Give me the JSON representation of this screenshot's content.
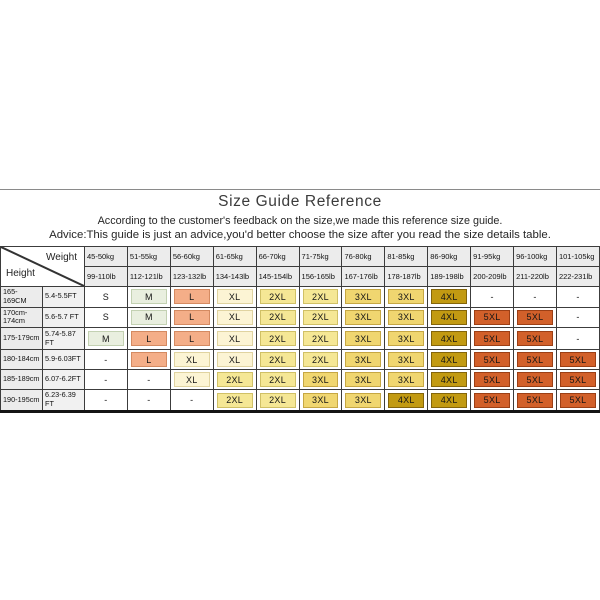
{
  "page": {
    "title": "Size Guide Reference",
    "subtitle_line1": "According to the customer's feedback on the size,we made this reference size guide.",
    "subtitle_line2": "Advice:This guide is just an advice,you'd better choose the size after you read the size details table."
  },
  "table": {
    "corner": {
      "weight_label": "Weight",
      "height_label": "Height"
    },
    "weight_headers_kg": [
      "45-50kg",
      "51-55kg",
      "56-60kg",
      "61-65kg",
      "66-70kg",
      "71-75kg",
      "76-80kg",
      "81-85kg",
      "86-90kg",
      "91-95kg",
      "96-100kg",
      "101-105kg"
    ],
    "weight_headers_lb": [
      "99-110lb",
      "112-121lb",
      "123-132lb",
      "134-143lb",
      "145-154lb",
      "156-165lb",
      "167-176lb",
      "178-187lb",
      "189-198lb",
      "200-209lb",
      "211-220lb",
      "222-231lb"
    ],
    "rows": [
      {
        "height_cm": "165-169CM",
        "height_ft": "5.4-5.5FT",
        "sizes": [
          "S",
          "M",
          "L",
          "XL",
          "2XL",
          "2XL",
          "3XL",
          "3XL",
          "4XL",
          "-",
          "-",
          "-"
        ]
      },
      {
        "height_cm": "170cm-174cm",
        "height_ft": "5.6-5.7 FT",
        "sizes": [
          "S",
          "M",
          "L",
          "XL",
          "2XL",
          "2XL",
          "3XL",
          "3XL",
          "4XL",
          "5XL",
          "5XL",
          "-"
        ]
      },
      {
        "height_cm": "175-179cm",
        "height_ft": "5.74-5.87 FT",
        "sizes": [
          "M",
          "L",
          "L",
          "XL",
          "2XL",
          "2XL",
          "3XL",
          "3XL",
          "4XL",
          "5XL",
          "5XL",
          "-"
        ]
      },
      {
        "height_cm": "180-184cm",
        "height_ft": "5.9-6.03FT",
        "sizes": [
          "-",
          "L",
          "XL",
          "XL",
          "2XL",
          "2XL",
          "3XL",
          "3XL",
          "4XL",
          "5XL",
          "5XL",
          "5XL"
        ]
      },
      {
        "height_cm": "185-189cm",
        "height_ft": "6.07-6.2FT",
        "sizes": [
          "-",
          "-",
          "XL",
          "2XL",
          "2XL",
          "3XL",
          "3XL",
          "3XL",
          "4XL",
          "5XL",
          "5XL",
          "5XL"
        ]
      },
      {
        "height_cm": "190-195cm",
        "height_ft": "6.23-6.39 FT",
        "sizes": [
          "-",
          "-",
          "-",
          "2XL",
          "2XL",
          "3XL",
          "3XL",
          "4XL",
          "4XL",
          "5XL",
          "5XL",
          "5XL"
        ]
      }
    ],
    "size_colors": {
      "S": {
        "bg": "#ffffff",
        "border": "transparent"
      },
      "M": {
        "bg": "#e9efdf",
        "border": "#c3d1b2"
      },
      "L": {
        "bg": "#f4ae88",
        "border": "#d48a61"
      },
      "XL": {
        "bg": "#fcf4d4",
        "border": "#e0d3a0"
      },
      "2XL": {
        "bg": "#f5e795",
        "border": "#d0c066"
      },
      "3XL": {
        "bg": "#f0d670",
        "border": "#c6a743"
      },
      "4XL": {
        "bg": "#c29a12",
        "border": "#84650a"
      },
      "5XL": {
        "bg": "#d2602a",
        "border": "#9c3f15"
      },
      "-": {
        "bg": "#ffffff",
        "border": "transparent"
      }
    },
    "divider_color": "#8a8a8a",
    "header_bg": "#ececec"
  },
  "chart_data": {
    "type": "table",
    "title": "Size Guide Reference",
    "notes": [
      "According to the customer's feedback on the size,we made this reference size guide.",
      "Advice:This guide is just an advice,you'd better choose the size after you read the size details table."
    ],
    "column_headers_weight_kg": [
      "45-50kg",
      "51-55kg",
      "56-60kg",
      "61-65kg",
      "66-70kg",
      "71-75kg",
      "76-80kg",
      "81-85kg",
      "86-90kg",
      "91-95kg",
      "96-100kg",
      "101-105kg"
    ],
    "column_headers_weight_lb": [
      "99-110lb",
      "112-121lb",
      "123-132lb",
      "134-143lb",
      "145-154lb",
      "156-165lb",
      "167-176lb",
      "178-187lb",
      "189-198lb",
      "200-209lb",
      "211-220lb",
      "222-231lb"
    ],
    "row_headers_height": [
      [
        "165-169CM",
        "5.4-5.5FT"
      ],
      [
        "170cm-174cm",
        "5.6-5.7 FT"
      ],
      [
        "175-179cm",
        "5.74-5.87 FT"
      ],
      [
        "180-184cm",
        "5.9-6.03FT"
      ],
      [
        "185-189cm",
        "6.07-6.2FT"
      ],
      [
        "190-195cm",
        "6.23-6.39 FT"
      ]
    ],
    "cells": [
      [
        "S",
        "M",
        "L",
        "XL",
        "2XL",
        "2XL",
        "3XL",
        "3XL",
        "4XL",
        "-",
        "-",
        "-"
      ],
      [
        "S",
        "M",
        "L",
        "XL",
        "2XL",
        "2XL",
        "3XL",
        "3XL",
        "4XL",
        "5XL",
        "5XL",
        "-"
      ],
      [
        "M",
        "L",
        "L",
        "XL",
        "2XL",
        "2XL",
        "3XL",
        "3XL",
        "4XL",
        "5XL",
        "5XL",
        "-"
      ],
      [
        "-",
        "L",
        "XL",
        "XL",
        "2XL",
        "2XL",
        "3XL",
        "3XL",
        "4XL",
        "5XL",
        "5XL",
        "5XL"
      ],
      [
        "-",
        "-",
        "XL",
        "2XL",
        "2XL",
        "3XL",
        "3XL",
        "3XL",
        "4XL",
        "5XL",
        "5XL",
        "5XL"
      ],
      [
        "-",
        "-",
        "-",
        "2XL",
        "2XL",
        "3XL",
        "3XL",
        "4XL",
        "4XL",
        "5XL",
        "5XL",
        "5XL"
      ]
    ]
  }
}
